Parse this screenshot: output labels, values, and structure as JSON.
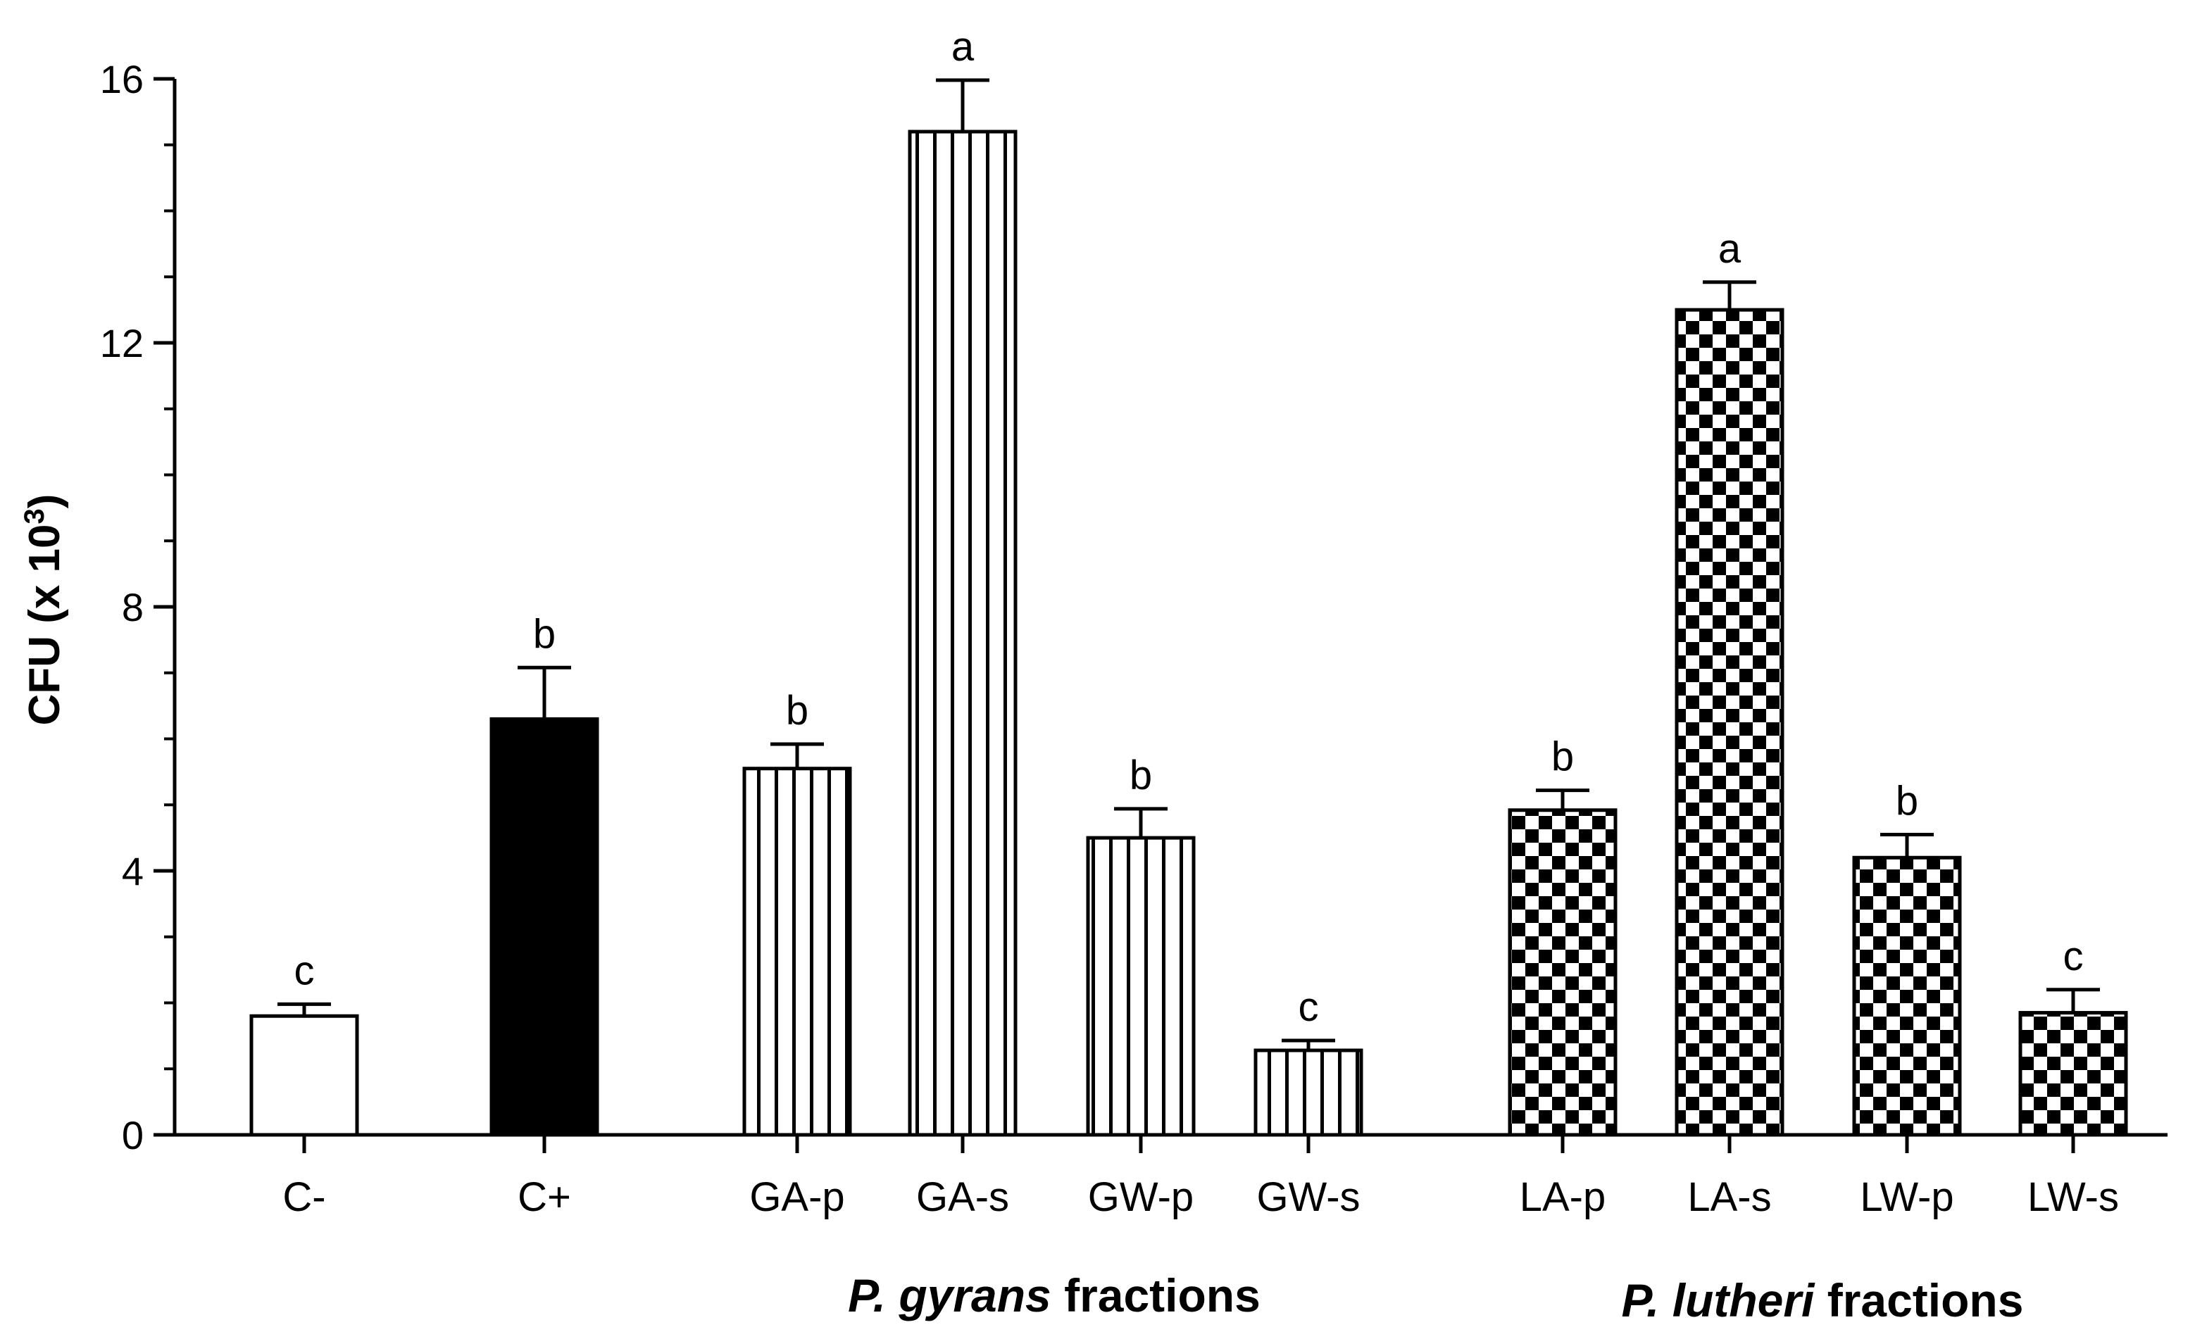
{
  "chart_data": {
    "type": "bar",
    "title": "",
    "xlabel": "",
    "ylabel": "CFU (x 10³)",
    "ylabel_text": "CFU (x 10",
    "ylabel_sup": "3",
    "ylabel_close": ")",
    "ylim": [
      0,
      16
    ],
    "yticks": [
      0,
      4,
      8,
      12,
      16
    ],
    "grid": false,
    "categories": [
      "C-",
      "C+",
      "GA-p",
      "GA-s",
      "GW-p",
      "GW-s",
      "LA-p",
      "LA-s",
      "LW-p",
      "LW-s"
    ],
    "values": [
      1.8,
      6.3,
      5.55,
      15.2,
      4.5,
      1.28,
      4.92,
      12.5,
      4.2,
      1.85
    ],
    "errors": [
      0.18,
      0.78,
      0.37,
      0.78,
      0.44,
      0.15,
      0.3,
      0.42,
      0.35,
      0.35
    ],
    "significance": [
      "c",
      "b",
      "b",
      "a",
      "b",
      "c",
      "b",
      "a",
      "b",
      "c"
    ],
    "fills": [
      "white",
      "black",
      "vertical-stripes",
      "vertical-stripes",
      "vertical-stripes",
      "vertical-stripes",
      "checker",
      "checker",
      "checker",
      "checker"
    ],
    "groups": [
      {
        "italic": "P. gyrans",
        "rest": " fractions",
        "members": [
          "GA-p",
          "GA-s",
          "GW-p",
          "GW-s"
        ]
      },
      {
        "italic": "P. lutheri",
        "rest": " fractions",
        "members": [
          "LA-p",
          "LA-s",
          "LW-p",
          "LW-s"
        ]
      }
    ],
    "colors": {
      "ink": "#000000",
      "paper": "#ffffff"
    }
  }
}
